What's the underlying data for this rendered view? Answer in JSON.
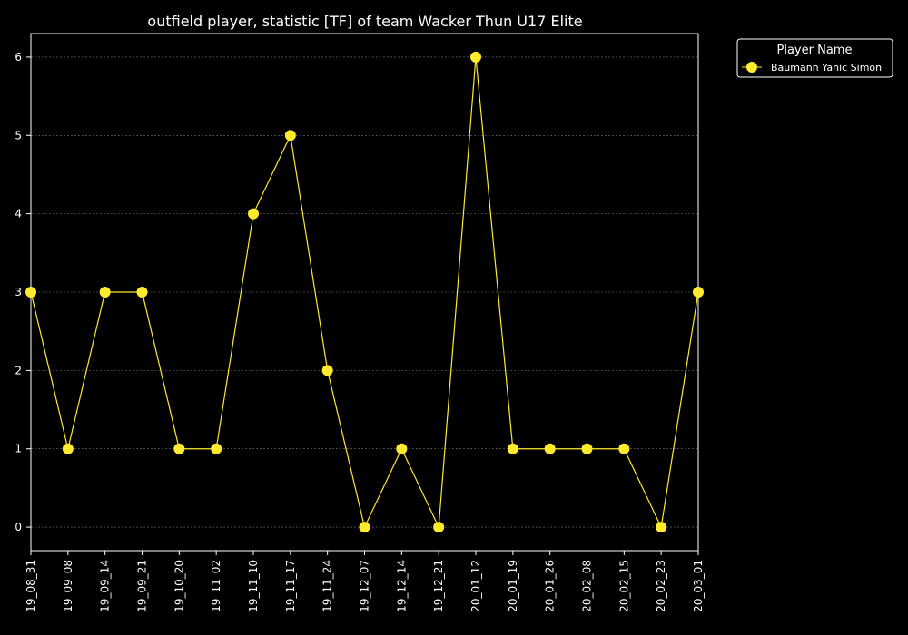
{
  "chart_data": {
    "type": "line",
    "title": "outfield player, statistic [TF] of team Wacker Thun U17 Elite",
    "xlabel": "",
    "ylabel": "",
    "categories": [
      "19_08_31",
      "19_09_08",
      "19_09_14",
      "19_09_21",
      "19_10_20",
      "19_11_02",
      "19_11_10",
      "19_11_17",
      "19_11_24",
      "19_12_07",
      "19_12_14",
      "19_12_21",
      "20_01_12",
      "20_01_19",
      "20_01_26",
      "20_02_08",
      "20_02_15",
      "20_02_23",
      "20_03_01"
    ],
    "series": [
      {
        "name": "Baumann Yanic Simon",
        "values": [
          3,
          1,
          3,
          3,
          1,
          1,
          4,
          5,
          2,
          0,
          1,
          0,
          6,
          1,
          1,
          1,
          1,
          0,
          3
        ],
        "color": "#ffea2e"
      }
    ],
    "ylim": [
      -0.3,
      6.3
    ],
    "yticks": [
      0,
      1,
      2,
      3,
      4,
      5,
      6
    ],
    "grid": true,
    "legend": {
      "title": "Player Name",
      "placement": "outside-top-right"
    },
    "colors": {
      "background": "#000000",
      "axes": "#ffffff",
      "grid": "#777777"
    }
  }
}
